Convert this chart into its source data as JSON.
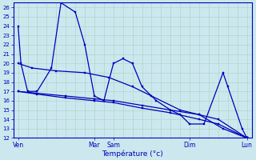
{
  "background_color": "#cce8ee",
  "grid_color": "#b0d8cc",
  "line_color": "#0000bb",
  "xlabel": "Température (°c)",
  "ylim": [
    12,
    26.5
  ],
  "yticks": [
    12,
    13,
    14,
    15,
    16,
    17,
    18,
    19,
    20,
    21,
    22,
    23,
    24,
    25,
    26
  ],
  "x_tick_labels": [
    "Ven",
    "Mar",
    "Sam",
    "Dim",
    "Lun"
  ],
  "x_tick_pos": [
    0,
    8,
    10,
    18,
    24
  ],
  "s1_x": [
    0,
    0.3,
    1.0,
    2.0,
    3.5,
    4.5,
    6.0,
    7.0,
    8.0,
    9.0,
    10.0,
    11.0,
    12.0,
    13.0,
    14.5,
    16.0,
    17.0,
    18.0,
    19.5,
    21.5,
    22.0,
    23.5,
    24.0
  ],
  "s1_y": [
    24,
    20.0,
    17.0,
    17.0,
    19.5,
    26.5,
    25.5,
    22.0,
    16.5,
    16.0,
    20.0,
    20.5,
    20.0,
    17.5,
    16.0,
    15.0,
    14.5,
    13.5,
    13.5,
    19.0,
    17.5,
    13.0,
    12.0
  ],
  "s2_x": [
    0,
    1.5,
    4.0,
    7.0,
    9.5,
    12.0,
    14.0,
    17.0,
    19.0,
    21.5,
    24.0
  ],
  "s2_y": [
    20.0,
    19.5,
    19.2,
    19.0,
    18.5,
    17.5,
    16.5,
    15.0,
    14.5,
    13.0,
    12.0
  ],
  "s3_x": [
    0,
    2.0,
    5.0,
    8.0,
    10.0,
    13.0,
    16.0,
    19.0,
    21.0,
    24.0
  ],
  "s3_y": [
    17.0,
    16.8,
    16.5,
    16.2,
    16.0,
    15.5,
    15.0,
    14.5,
    14.0,
    12.0
  ],
  "s4_x": [
    0,
    2.0,
    5.0,
    8.0,
    10.0,
    13.0,
    16.0,
    19.0,
    21.0,
    24.0
  ],
  "s4_y": [
    17.0,
    16.7,
    16.3,
    16.0,
    15.8,
    15.2,
    14.7,
    14.0,
    13.5,
    12.0
  ]
}
